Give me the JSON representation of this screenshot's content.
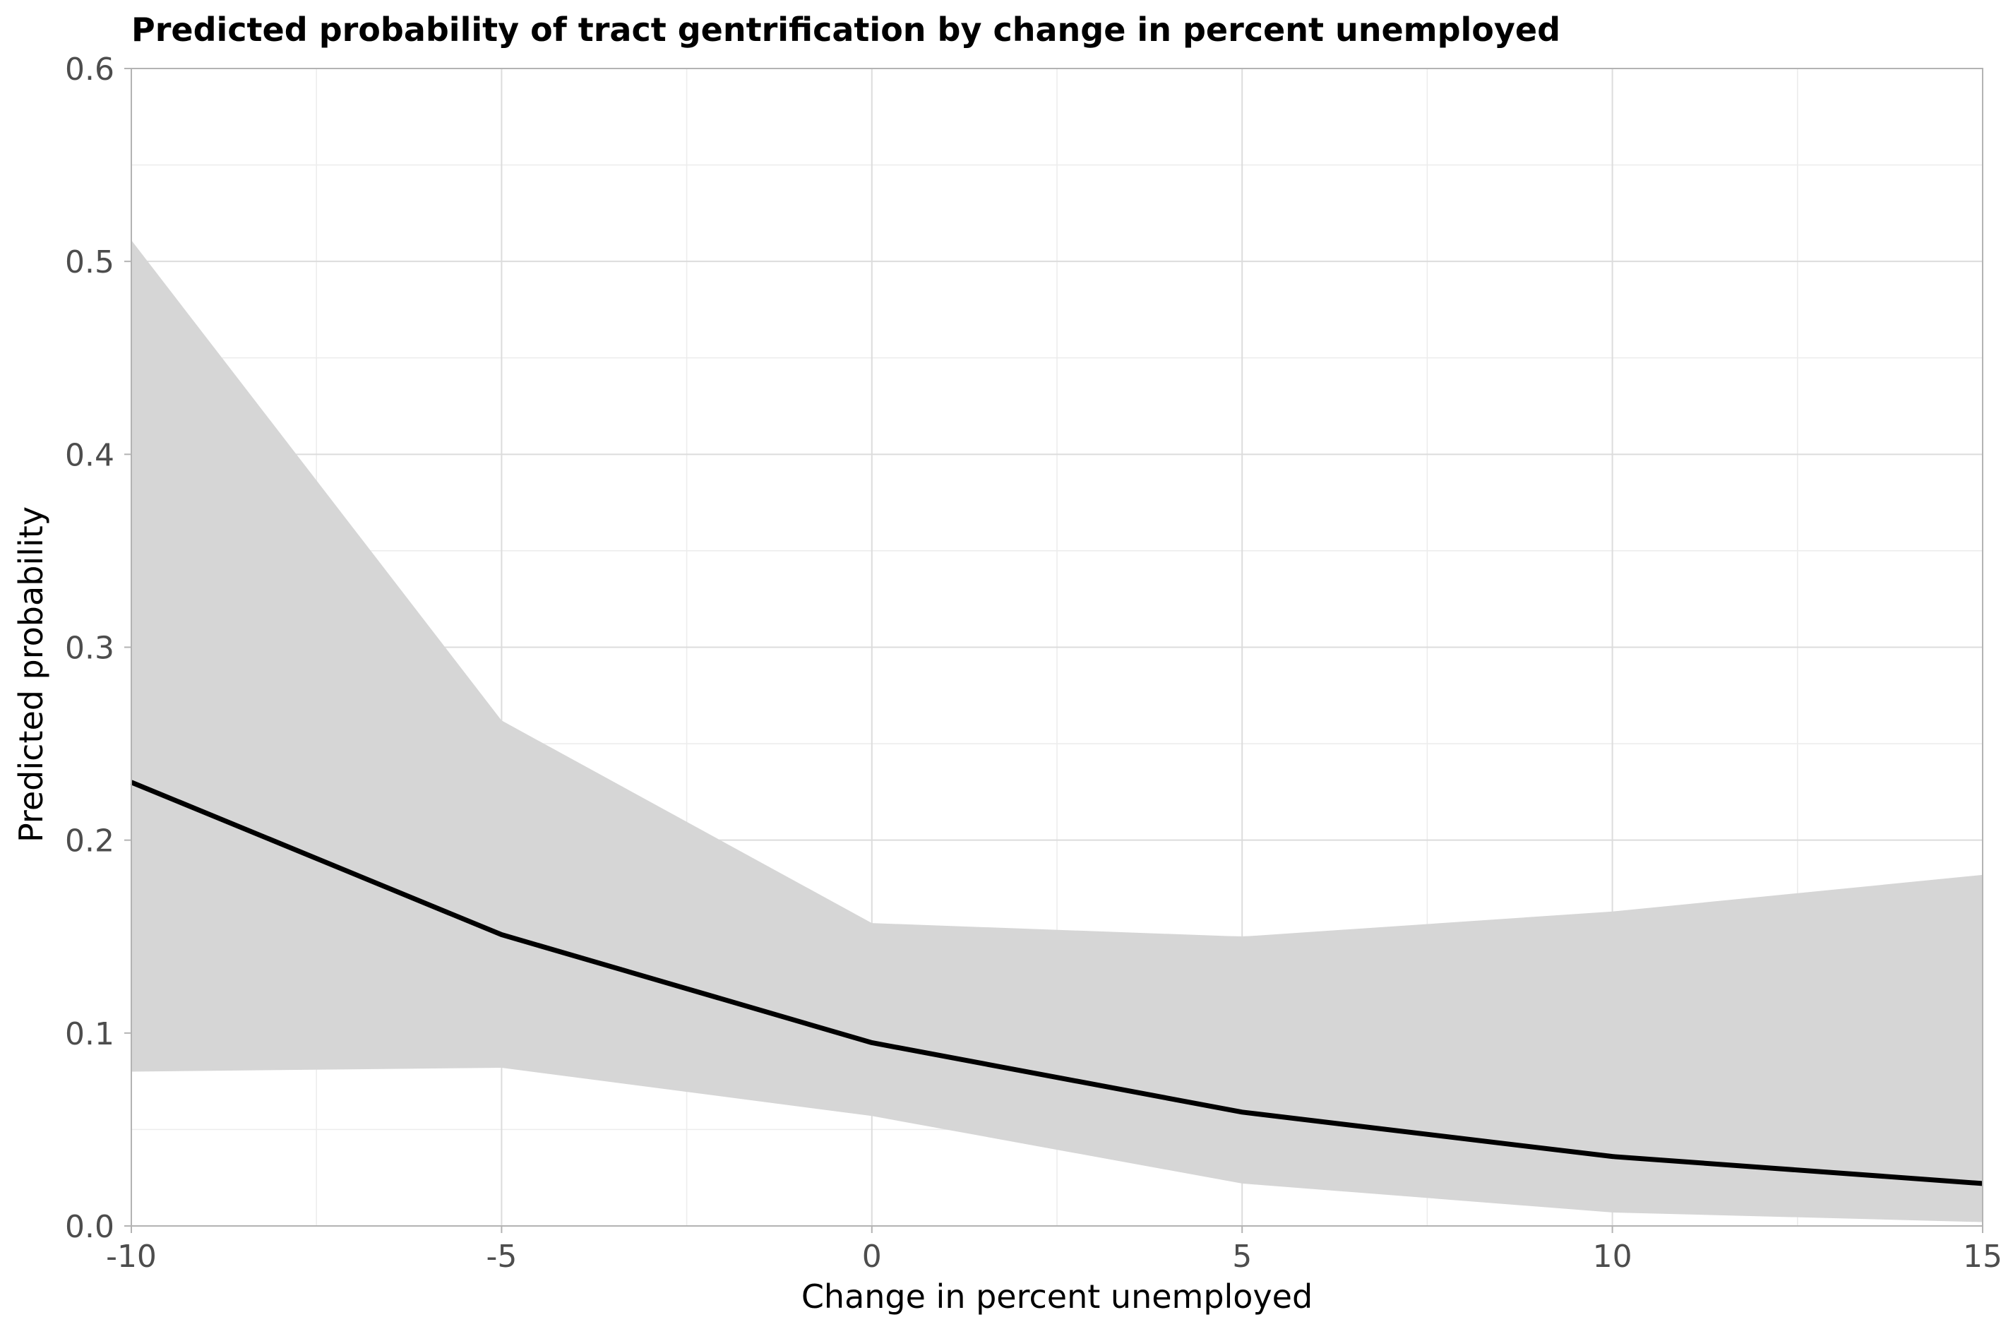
{
  "chart_data": {
    "type": "line",
    "title": "Predicted probability of tract gentrification by change in percent unemployed",
    "xlabel": "Change in percent unemployed",
    "ylabel": "Predicted probability",
    "xlim": [
      -10,
      15
    ],
    "ylim": [
      0,
      0.6
    ],
    "x_ticks": [
      -10,
      -5,
      0,
      5,
      10,
      15
    ],
    "x_tick_labels": [
      "-10",
      "-5",
      "0",
      "5",
      "10",
      "15"
    ],
    "y_ticks": [
      0,
      0.1,
      0.2,
      0.3,
      0.4,
      0.5,
      0.6
    ],
    "y_tick_labels": [
      "0.0",
      "0.1",
      "0.2",
      "0.3",
      "0.4",
      "0.5",
      "0.6"
    ],
    "grid": true,
    "legend": "none",
    "x": [
      -10,
      -5,
      0,
      5,
      10,
      15
    ],
    "series": [
      {
        "values": [
          0.23,
          0.151,
          0.095,
          0.059,
          0.036,
          0.022
        ],
        "lower": [
          0.08,
          0.082,
          0.057,
          0.022,
          0.007,
          0.002
        ],
        "upper": [
          0.511,
          0.262,
          0.157,
          0.15,
          0.163,
          0.182
        ]
      }
    ],
    "colors": {
      "line": "#000000",
      "ribbon": "#d6d6d6",
      "grid_major": "#dcdcdc",
      "grid_minor": "#ececec",
      "panel_border": "#b3b3b3",
      "tick_text": "#4d4d4d"
    }
  }
}
